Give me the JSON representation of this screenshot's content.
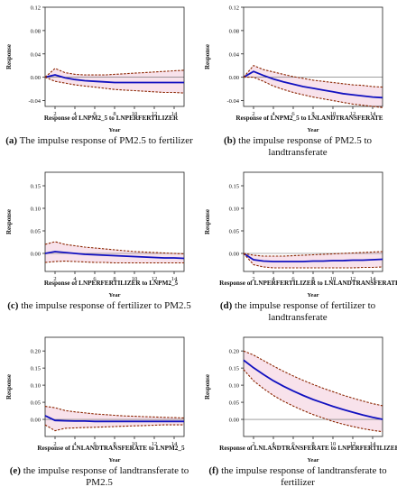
{
  "colors": {
    "response": "#1010c0",
    "band": "#8b2500",
    "band_fill": "#f6dbe6",
    "zero": "#666666"
  },
  "chart_data": [
    {
      "type": "line",
      "label": "(a)",
      "caption": "The impulse response of PM2.5 to fertilizer",
      "title": "Response of LNPM2_5 to LNPERFERTILIZER",
      "xlabel": "Year",
      "ylabel": "Response",
      "xlim": [
        1,
        15
      ],
      "ylim": [
        -0.05,
        0.12
      ],
      "yticks": [
        -0.04,
        0.0,
        0.04,
        0.08,
        0.12
      ],
      "ytick_labels": [
        "-0.04",
        "0.00",
        "0.04",
        "0.08",
        "0.12"
      ],
      "xticks": [
        2,
        4,
        6,
        8,
        10,
        12,
        14
      ],
      "x": [
        1,
        2,
        3,
        4,
        5,
        6,
        7,
        8,
        9,
        10,
        11,
        12,
        13,
        14,
        15
      ],
      "series": [
        {
          "role": "response",
          "values": [
            0.0,
            0.004,
            -0.001,
            -0.004,
            -0.006,
            -0.007,
            -0.008,
            -0.009,
            -0.009,
            -0.009,
            -0.009,
            -0.009,
            -0.009,
            -0.009,
            -0.009
          ]
        },
        {
          "role": "upper",
          "values": [
            0.0,
            0.015,
            0.008,
            0.005,
            0.004,
            0.004,
            0.004,
            0.005,
            0.006,
            0.007,
            0.008,
            0.009,
            0.01,
            0.011,
            0.012
          ]
        },
        {
          "role": "lower",
          "values": [
            0.0,
            -0.007,
            -0.01,
            -0.013,
            -0.015,
            -0.017,
            -0.019,
            -0.021,
            -0.022,
            -0.023,
            -0.024,
            -0.025,
            -0.026,
            -0.026,
            -0.027
          ]
        }
      ]
    },
    {
      "type": "line",
      "label": "(b)",
      "caption": "the impulse response of PM2.5 to landtransferate",
      "title": "Response of LNPM2_5 to LNLANDTRANSFERATE",
      "xlabel": "Year",
      "ylabel": "Response",
      "xlim": [
        1,
        15
      ],
      "ylim": [
        -0.05,
        0.12
      ],
      "yticks": [
        -0.04,
        0.0,
        0.04,
        0.08,
        0.12
      ],
      "ytick_labels": [
        "-0.04",
        "0.00",
        "0.04",
        "0.08",
        "0.12"
      ],
      "xticks": [
        2,
        4,
        6,
        8,
        10,
        12,
        14
      ],
      "x": [
        1,
        2,
        3,
        4,
        5,
        6,
        7,
        8,
        9,
        10,
        11,
        12,
        13,
        14,
        15
      ],
      "series": [
        {
          "role": "response",
          "values": [
            0.0,
            0.01,
            0.003,
            -0.003,
            -0.008,
            -0.012,
            -0.016,
            -0.019,
            -0.022,
            -0.025,
            -0.028,
            -0.03,
            -0.032,
            -0.034,
            -0.035
          ]
        },
        {
          "role": "upper",
          "values": [
            0.0,
            0.02,
            0.013,
            0.009,
            0.005,
            0.001,
            -0.002,
            -0.005,
            -0.007,
            -0.009,
            -0.011,
            -0.013,
            -0.014,
            -0.016,
            -0.017
          ]
        },
        {
          "role": "lower",
          "values": [
            0.0,
            0.0,
            -0.007,
            -0.015,
            -0.021,
            -0.026,
            -0.03,
            -0.034,
            -0.037,
            -0.04,
            -0.043,
            -0.046,
            -0.048,
            -0.05,
            -0.052
          ]
        }
      ]
    },
    {
      "type": "line",
      "label": "(c)",
      "caption": "the impulse response of fertilizer to PM2.5",
      "title": "Response of LNPERFERTILIZER to LNPM2_5",
      "xlabel": "Year",
      "ylabel": "Response",
      "xlim": [
        1,
        15
      ],
      "ylim": [
        -0.04,
        0.18
      ],
      "yticks": [
        0.0,
        0.05,
        0.1,
        0.15
      ],
      "ytick_labels": [
        "0.00",
        "0.05",
        "0.10",
        "0.15"
      ],
      "xticks": [
        2,
        4,
        6,
        8,
        10,
        12,
        14
      ],
      "x": [
        1,
        2,
        3,
        4,
        5,
        6,
        7,
        8,
        9,
        10,
        11,
        12,
        13,
        14,
        15
      ],
      "series": [
        {
          "role": "response",
          "values": [
            0.0,
            0.004,
            0.002,
            0.0,
            -0.002,
            -0.003,
            -0.004,
            -0.005,
            -0.006,
            -0.007,
            -0.008,
            -0.009,
            -0.01,
            -0.01,
            -0.011
          ]
        },
        {
          "role": "upper",
          "values": [
            0.02,
            0.026,
            0.02,
            0.017,
            0.014,
            0.012,
            0.01,
            0.008,
            0.006,
            0.004,
            0.003,
            0.002,
            0.001,
            0.0,
            -0.001
          ]
        },
        {
          "role": "lower",
          "values": [
            -0.02,
            -0.018,
            -0.017,
            -0.018,
            -0.019,
            -0.02,
            -0.02,
            -0.021,
            -0.021,
            -0.021,
            -0.021,
            -0.021,
            -0.021,
            -0.021,
            -0.021
          ]
        }
      ]
    },
    {
      "type": "line",
      "label": "(d)",
      "caption": "the impulse response of fertilizer to landtransferate",
      "title": "Response of LNPERFERTILIZER to LNLANDTRANSFERATE",
      "xlabel": "Year",
      "ylabel": "Response",
      "xlim": [
        1,
        15
      ],
      "ylim": [
        -0.04,
        0.18
      ],
      "yticks": [
        0.0,
        0.05,
        0.1,
        0.15
      ],
      "ytick_labels": [
        "0.00",
        "0.05",
        "0.10",
        "0.15"
      ],
      "xticks": [
        2,
        4,
        6,
        8,
        10,
        12,
        14
      ],
      "x": [
        1,
        2,
        3,
        4,
        5,
        6,
        7,
        8,
        9,
        10,
        11,
        12,
        13,
        14,
        15
      ],
      "series": [
        {
          "role": "response",
          "values": [
            0.0,
            -0.014,
            -0.017,
            -0.018,
            -0.018,
            -0.018,
            -0.018,
            -0.017,
            -0.017,
            -0.016,
            -0.016,
            -0.015,
            -0.015,
            -0.014,
            -0.013
          ]
        },
        {
          "role": "upper",
          "values": [
            0.0,
            -0.004,
            -0.006,
            -0.006,
            -0.006,
            -0.005,
            -0.004,
            -0.003,
            -0.002,
            -0.001,
            0.0,
            0.001,
            0.002,
            0.003,
            0.004
          ]
        },
        {
          "role": "lower",
          "values": [
            0.0,
            -0.025,
            -0.03,
            -0.032,
            -0.032,
            -0.032,
            -0.032,
            -0.032,
            -0.032,
            -0.032,
            -0.032,
            -0.032,
            -0.031,
            -0.031,
            -0.03
          ]
        }
      ]
    },
    {
      "type": "line",
      "label": "(e)",
      "caption": "the impulse response of landtransferate to PM2.5",
      "title": "Response of LNLANDTRANSFERATE to LNPM2_5",
      "xlabel": "Year",
      "ylabel": "Response",
      "xlim": [
        1,
        15
      ],
      "ylim": [
        -0.05,
        0.24
      ],
      "yticks": [
        0.0,
        0.05,
        0.1,
        0.15,
        0.2
      ],
      "ytick_labels": [
        "0.00",
        "0.05",
        "0.10",
        "0.15",
        "0.20"
      ],
      "xticks": [
        2,
        4,
        6,
        8,
        10,
        12,
        14
      ],
      "x": [
        1,
        2,
        3,
        4,
        5,
        6,
        7,
        8,
        9,
        10,
        11,
        12,
        13,
        14,
        15
      ],
      "series": [
        {
          "role": "response",
          "values": [
            0.011,
            -0.003,
            -0.004,
            -0.005,
            -0.005,
            -0.006,
            -0.006,
            -0.006,
            -0.006,
            -0.006,
            -0.006,
            -0.006,
            -0.006,
            -0.006,
            -0.006
          ]
        },
        {
          "role": "upper",
          "values": [
            0.038,
            0.034,
            0.026,
            0.022,
            0.019,
            0.016,
            0.014,
            0.012,
            0.01,
            0.009,
            0.008,
            0.007,
            0.006,
            0.005,
            0.004
          ]
        },
        {
          "role": "lower",
          "values": [
            -0.016,
            -0.033,
            -0.026,
            -0.025,
            -0.024,
            -0.023,
            -0.022,
            -0.021,
            -0.02,
            -0.019,
            -0.018,
            -0.017,
            -0.016,
            -0.016,
            -0.016
          ]
        }
      ]
    },
    {
      "type": "line",
      "label": "(f)",
      "caption": "the impulse response of landtransferate to fertilizer",
      "title": "Response of LNLANDTRANSFERATE to LNPERFERTILIZER",
      "xlabel": "Year",
      "ylabel": "Response",
      "xlim": [
        1,
        15
      ],
      "ylim": [
        -0.05,
        0.24
      ],
      "yticks": [
        0.0,
        0.05,
        0.1,
        0.15,
        0.2
      ],
      "ytick_labels": [
        "0.00",
        "0.05",
        "0.10",
        "0.15",
        "0.20"
      ],
      "xticks": [
        2,
        4,
        6,
        8,
        10,
        12,
        14
      ],
      "x": [
        1,
        2,
        3,
        4,
        5,
        6,
        7,
        8,
        9,
        10,
        11,
        12,
        13,
        14,
        15
      ],
      "series": [
        {
          "role": "response",
          "values": [
            0.173,
            0.151,
            0.131,
            0.113,
            0.097,
            0.083,
            0.07,
            0.058,
            0.048,
            0.038,
            0.029,
            0.021,
            0.013,
            0.006,
            0.0
          ]
        },
        {
          "role": "upper",
          "values": [
            0.2,
            0.188,
            0.172,
            0.156,
            0.141,
            0.127,
            0.114,
            0.102,
            0.091,
            0.081,
            0.071,
            0.062,
            0.054,
            0.046,
            0.04
          ]
        },
        {
          "role": "lower",
          "values": [
            0.146,
            0.113,
            0.09,
            0.07,
            0.053,
            0.039,
            0.026,
            0.014,
            0.004,
            -0.006,
            -0.014,
            -0.021,
            -0.027,
            -0.032,
            -0.036
          ]
        }
      ]
    }
  ]
}
